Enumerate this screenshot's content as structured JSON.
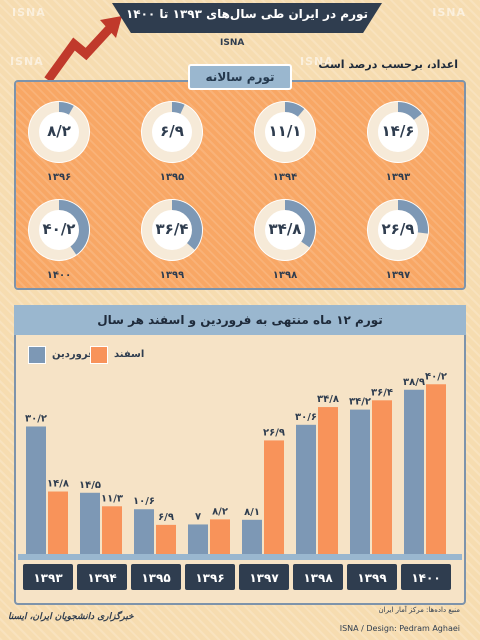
{
  "watermark": "ISNA",
  "title": "تورم در ایران طی سال‌های ۱۳۹۳ تا ۱۴۰۰",
  "subtitle": "اعداد، برحسب درصد است",
  "annual_title": "تورم سالانه",
  "source": "منبع داده‌ها: مرکز آمار ایران",
  "design": "ISNA / Design: Pedram Aghaei",
  "credit": "خبرگزاری دانشجویان ایران، ایسنا",
  "colors": {
    "blue": "#7d98b5",
    "orange": "#f8935a",
    "dark": "#2f3d4f"
  },
  "chart_data": [
    {
      "type": "pie",
      "title": "تورم سالانه",
      "categories": [
        "۱۳۹۳",
        "۱۳۹۴",
        "۱۳۹۵",
        "۱۳۹۶",
        "۱۳۹۷",
        "۱۳۹۸",
        "۱۳۹۹",
        "۱۴۰۰"
      ],
      "values": [
        14.6,
        11.1,
        6.9,
        8.2,
        26.9,
        34.8,
        36.4,
        40.2
      ],
      "labels": [
        "۱۴/۶",
        "۱۱/۱",
        "۶/۹",
        "۸/۲",
        "۲۶/۹",
        "۳۴/۸",
        "۳۶/۴",
        "۴۰/۲"
      ]
    },
    {
      "type": "bar",
      "title": "تورم ۱۲ ماه منتهی به فروردین و اسفند هر سال",
      "categories": [
        "۱۳۹۳",
        "۱۳۹۴",
        "۱۳۹۵",
        "۱۳۹۶",
        "۱۳۹۷",
        "۱۳۹۸",
        "۱۳۹۹",
        "۱۴۰۰"
      ],
      "series": [
        {
          "name": "فروردین",
          "values": [
            30.2,
            14.5,
            10.6,
            7,
            8.1,
            30.6,
            34.2,
            38.9
          ],
          "labels": [
            "۳۰/۲",
            "۱۴/۵",
            "۱۰/۶",
            "۷",
            "۸/۱",
            "۳۰/۶",
            "۳۴/۲",
            "۳۸/۹"
          ]
        },
        {
          "name": "اسفند",
          "values": [
            14.8,
            11.3,
            6.9,
            8.2,
            26.9,
            34.8,
            36.4,
            40.2
          ],
          "labels": [
            "۱۴/۸",
            "۱۱/۳",
            "۶/۹",
            "۸/۲",
            "۲۶/۹",
            "۳۴/۸",
            "۳۶/۴",
            "۴۰/۲"
          ]
        }
      ],
      "ylim": [
        0,
        45
      ],
      "legend": "top-left"
    }
  ]
}
